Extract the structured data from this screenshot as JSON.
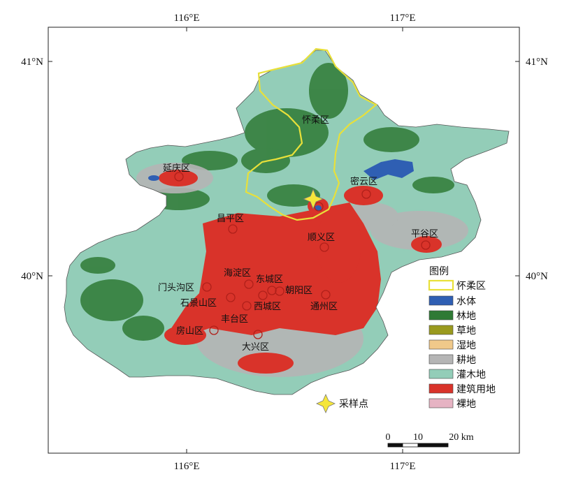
{
  "axes": {
    "top": [
      "116°E",
      "117°E"
    ],
    "bottom": [
      "116°E",
      "117°E"
    ],
    "left": [
      "41°N",
      "40°N"
    ],
    "right": [
      "41°N",
      "40°N"
    ]
  },
  "districts": [
    {
      "key": "huairou",
      "name": "怀柔区"
    },
    {
      "key": "yanqing",
      "name": "延庆区"
    },
    {
      "key": "miyun",
      "name": "密云区"
    },
    {
      "key": "changping",
      "name": "昌平区"
    },
    {
      "key": "shunyi",
      "name": "顺义区"
    },
    {
      "key": "pinggu",
      "name": "平谷区"
    },
    {
      "key": "haidian",
      "name": "海淀区"
    },
    {
      "key": "dongcheng",
      "name": "东城区"
    },
    {
      "key": "mentougou",
      "name": "门头沟区"
    },
    {
      "key": "chaoyang",
      "name": "朝阳区"
    },
    {
      "key": "shijingshan",
      "name": "石景山区"
    },
    {
      "key": "xicheng",
      "name": "西城区"
    },
    {
      "key": "tongzhou",
      "name": "通州区"
    },
    {
      "key": "fengtai",
      "name": "丰台区"
    },
    {
      "key": "fangshan",
      "name": "房山区"
    },
    {
      "key": "daxing",
      "name": "大兴区"
    }
  ],
  "legend": {
    "title": "图例",
    "items": [
      {
        "label": "怀柔区",
        "color": "#e8e03a",
        "type": "outline"
      },
      {
        "label": "水体",
        "color": "#2f5fb3",
        "type": "fill"
      },
      {
        "label": "林地",
        "color": "#2f7a35",
        "type": "fill"
      },
      {
        "label": "草地",
        "color": "#9a9a1e",
        "type": "fill"
      },
      {
        "label": "湿地",
        "color": "#f0c98a",
        "type": "fill"
      },
      {
        "label": "耕地",
        "color": "#b5b5b5",
        "type": "fill"
      },
      {
        "label": "灌木地",
        "color": "#93cdb8",
        "type": "fill"
      },
      {
        "label": "建筑用地",
        "color": "#d9332a",
        "type": "fill"
      },
      {
        "label": "裸地",
        "color": "#e6b3c3",
        "type": "fill"
      }
    ]
  },
  "sampling_point": {
    "label": "采样点",
    "color": "#f5e63a"
  },
  "scale_bar": {
    "labels": [
      "0",
      "10",
      "20 km"
    ]
  }
}
